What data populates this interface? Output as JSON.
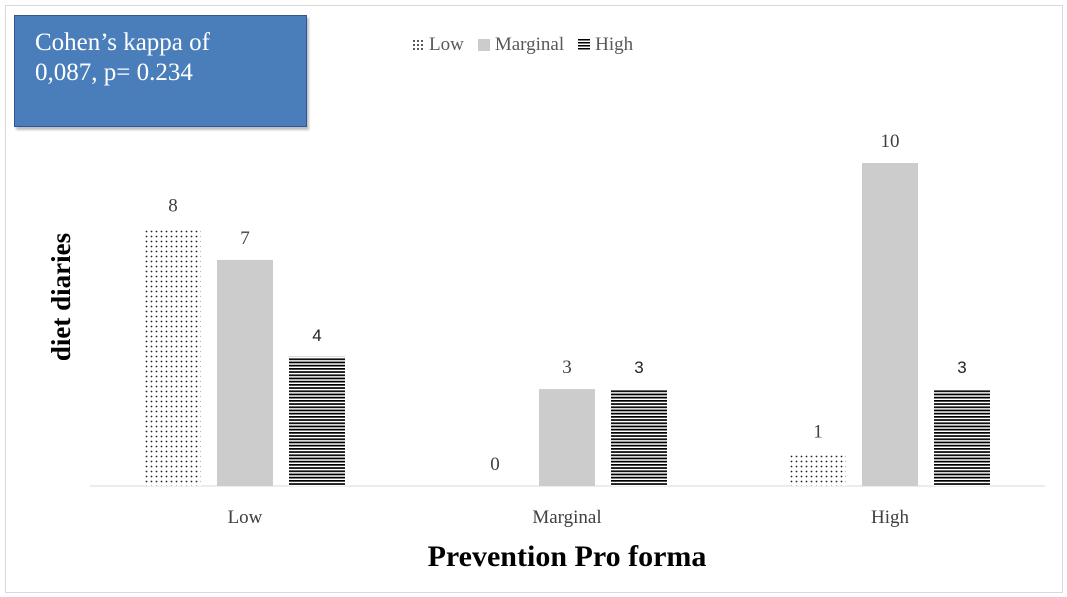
{
  "chart_data": {
    "type": "bar",
    "categories": [
      "Low",
      "Marginal",
      "High"
    ],
    "series": [
      {
        "name": "Low",
        "values": [
          8,
          0,
          1
        ],
        "pattern": "dots"
      },
      {
        "name": "Marginal",
        "values": [
          7,
          3,
          10
        ],
        "color": "#cccccc"
      },
      {
        "name": "High",
        "values": [
          4,
          3,
          3
        ],
        "pattern": "horizontal-lines"
      }
    ],
    "xlabel": "Prevention Pro forma",
    "ylabel": "diet diaries",
    "ylim": [
      0,
      11
    ],
    "grid": false,
    "legend_position": "top"
  },
  "annotation": {
    "line1": "Cohen’s kappa of",
    "line2": "0,087, p= 0.234"
  },
  "colors": {
    "annotation_fill": "#4a7ebb",
    "marginal_bar": "#cccccc",
    "axis": "#d9d9d9"
  }
}
